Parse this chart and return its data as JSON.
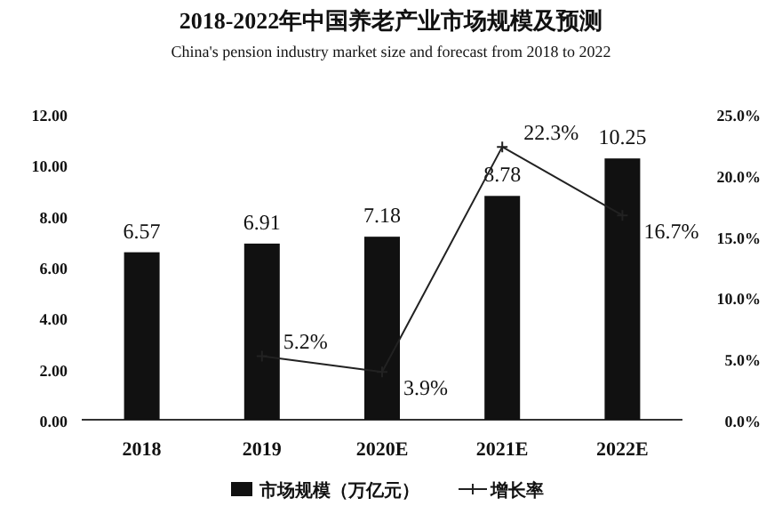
{
  "chart_data": {
    "type": "bar",
    "title": "2018-2022年中国养老产业市场规模及预测",
    "subtitle": "China's pension industry market size and forecast from 2018 to  2022",
    "categories": [
      "2018",
      "2019",
      "2020E",
      "2021E",
      "2022E"
    ],
    "series": [
      {
        "name": "市场规模（万亿元）",
        "color": "#111111",
        "values": [
          6.57,
          6.91,
          7.18,
          8.78,
          10.25
        ]
      },
      {
        "name": "增长率",
        "type": "line",
        "axis": "y2",
        "color": "#222222",
        "values": [
          null,
          5.2,
          3.9,
          22.3,
          16.7
        ],
        "value_labels": [
          null,
          "5.2%",
          "3.9%",
          "22.3%",
          "16.7%"
        ]
      }
    ],
    "data_labels": true,
    "ylim": [
      0,
      12
    ],
    "yticks": [
      {
        "value": 0,
        "label": "0.00"
      },
      {
        "value": 2,
        "label": "2.00"
      },
      {
        "value": 4,
        "label": "4.00"
      },
      {
        "value": 6,
        "label": "6.00"
      },
      {
        "value": 8,
        "label": "8.00"
      },
      {
        "value": 10,
        "label": "10.00"
      },
      {
        "value": 12,
        "label": "12.00"
      }
    ],
    "y2lim": [
      0,
      25
    ],
    "y2ticks": [
      {
        "value": 0,
        "label": "0.0%"
      },
      {
        "value": 5,
        "label": "5.0%"
      },
      {
        "value": 10,
        "label": "10.0%"
      },
      {
        "value": 15,
        "label": "15.0%"
      },
      {
        "value": 20,
        "label": "20.0%"
      },
      {
        "value": 25,
        "label": "25.0%"
      }
    ],
    "legend": "bottom",
    "marker": "cross",
    "grid": false
  }
}
